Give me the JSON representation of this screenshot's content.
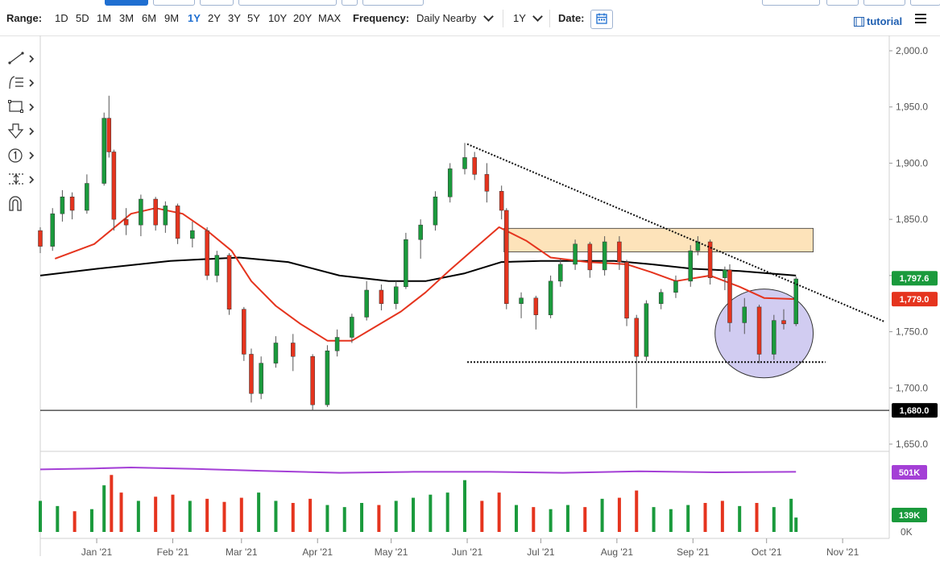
{
  "toolbar": {
    "range_label": "Range:",
    "ranges": [
      "1D",
      "5D",
      "1M",
      "3M",
      "6M",
      "9M",
      "1Y",
      "2Y",
      "3Y",
      "5Y",
      "10Y",
      "20Y",
      "MAX"
    ],
    "active_range": "1Y",
    "frequency_label": "Frequency:",
    "frequency_value": "Daily Nearby",
    "period_value": "1Y",
    "date_label": "Date:",
    "tutorial_label": "tutorial"
  },
  "chart_data": {
    "type": "candlestick",
    "x_ticks": [
      "Jan '21",
      "Feb '21",
      "Mar '21",
      "Apr '21",
      "May '21",
      "Jun '21",
      "Jul '21",
      "Aug '21",
      "Sep '21",
      "Oct '21",
      "Nov '21"
    ],
    "y_ticks": [
      "2,000.0",
      "1,950.0",
      "1,900.0",
      "1,850.0",
      "1,800.0",
      "1,750.0",
      "1,700.0",
      "1,650.0"
    ],
    "ylim": [
      1650,
      2000
    ],
    "x_range": [
      "2020-12-09",
      "2021-11-20"
    ],
    "price_labels": [
      {
        "text": "1,797.6",
        "value": 1797.6,
        "color": "#1a9a3c"
      },
      {
        "text": "1,779.0",
        "value": 1779.0,
        "color": "#e5341e"
      },
      {
        "text": "1,680.0",
        "value": 1680.0,
        "color": "#000000"
      }
    ],
    "horizontal_line": 1680.0,
    "resistance_zone": {
      "from_date": "2021-06-16",
      "to_date": "2021-10-20",
      "low": 1821,
      "high": 1842,
      "color": "#fde3ba"
    },
    "support_line": {
      "from_date": "2021-06-01",
      "to_date": "2021-10-25",
      "value": 1723
    },
    "trendline": {
      "from_date": "2021-06-01",
      "from_value": 1917,
      "to_date": "2021-11-18",
      "to_value": 1759
    },
    "highlight_ellipse": {
      "from_date": "2021-09-10",
      "to_date": "2021-10-20",
      "low": 1709,
      "high": 1788,
      "color": "#c9c3ee"
    },
    "ma_short_color": "#e5341e",
    "ma_long_color": "#000000",
    "ma_short": [
      [
        "2020-12-15",
        1815
      ],
      [
        "2020-12-31",
        1828
      ],
      [
        "2021-01-15",
        1855
      ],
      [
        "2021-01-25",
        1860
      ],
      [
        "2021-02-05",
        1855
      ],
      [
        "2021-02-15",
        1840
      ],
      [
        "2021-02-25",
        1822
      ],
      [
        "2021-03-05",
        1795
      ],
      [
        "2021-03-15",
        1773
      ],
      [
        "2021-03-25",
        1757
      ],
      [
        "2021-04-05",
        1742
      ],
      [
        "2021-04-15",
        1742
      ],
      [
        "2021-04-25",
        1755
      ],
      [
        "2021-05-05",
        1768
      ],
      [
        "2021-05-15",
        1785
      ],
      [
        "2021-05-25",
        1805
      ],
      [
        "2021-06-05",
        1826
      ],
      [
        "2021-06-14",
        1843
      ],
      [
        "2021-06-25",
        1831
      ],
      [
        "2021-07-05",
        1816
      ],
      [
        "2021-07-20",
        1812
      ],
      [
        "2021-08-05",
        1810
      ],
      [
        "2021-08-15",
        1803
      ],
      [
        "2021-08-25",
        1795
      ],
      [
        "2021-09-08",
        1800
      ],
      [
        "2021-09-20",
        1790
      ],
      [
        "2021-09-30",
        1780
      ],
      [
        "2021-10-13",
        1779
      ]
    ],
    "ma_long": [
      [
        "2020-12-09",
        1800
      ],
      [
        "2021-01-01",
        1806
      ],
      [
        "2021-01-31",
        1813
      ],
      [
        "2021-02-28",
        1816
      ],
      [
        "2021-03-20",
        1812
      ],
      [
        "2021-04-10",
        1800
      ],
      [
        "2021-04-30",
        1795
      ],
      [
        "2021-05-15",
        1795
      ],
      [
        "2021-05-31",
        1802
      ],
      [
        "2021-06-15",
        1812
      ],
      [
        "2021-07-01",
        1813
      ],
      [
        "2021-07-31",
        1813
      ],
      [
        "2021-08-15",
        1810
      ],
      [
        "2021-09-01",
        1806
      ],
      [
        "2021-09-20",
        1804
      ],
      [
        "2021-10-13",
        1800
      ]
    ],
    "candles": [
      [
        "2020-12-09",
        1840,
        1843,
        1820,
        1826
      ],
      [
        "2020-12-14",
        1826,
        1860,
        1822,
        1855
      ],
      [
        "2020-12-18",
        1855,
        1876,
        1848,
        1870
      ],
      [
        "2020-12-22",
        1870,
        1874,
        1850,
        1858
      ],
      [
        "2020-12-28",
        1858,
        1890,
        1855,
        1882
      ],
      [
        "2021-01-04",
        1882,
        1945,
        1880,
        1940
      ],
      [
        "2021-01-06",
        1940,
        1960,
        1905,
        1910
      ],
      [
        "2021-01-08",
        1910,
        1912,
        1840,
        1850
      ],
      [
        "2021-01-13",
        1850,
        1860,
        1836,
        1845
      ],
      [
        "2021-01-19",
        1845,
        1872,
        1835,
        1868
      ],
      [
        "2021-01-25",
        1868,
        1870,
        1840,
        1845
      ],
      [
        "2021-01-29",
        1845,
        1866,
        1838,
        1862
      ],
      [
        "2021-02-03",
        1862,
        1864,
        1828,
        1833
      ],
      [
        "2021-02-09",
        1833,
        1848,
        1825,
        1840
      ],
      [
        "2021-02-15",
        1840,
        1843,
        1796,
        1800
      ],
      [
        "2021-02-19",
        1800,
        1822,
        1794,
        1818
      ],
      [
        "2021-02-24",
        1818,
        1820,
        1765,
        1770
      ],
      [
        "2021-03-02",
        1770,
        1772,
        1724,
        1730
      ],
      [
        "2021-03-05",
        1730,
        1735,
        1687,
        1695
      ],
      [
        "2021-03-09",
        1695,
        1728,
        1690,
        1722
      ],
      [
        "2021-03-15",
        1722,
        1746,
        1718,
        1740
      ],
      [
        "2021-03-22",
        1740,
        1748,
        1715,
        1728
      ],
      [
        "2021-03-30",
        1728,
        1730,
        1680,
        1685
      ],
      [
        "2021-04-05",
        1685,
        1738,
        1683,
        1733
      ],
      [
        "2021-04-09",
        1733,
        1752,
        1728,
        1745
      ],
      [
        "2021-04-15",
        1745,
        1766,
        1740,
        1763
      ],
      [
        "2021-04-21",
        1763,
        1795,
        1760,
        1787
      ],
      [
        "2021-04-27",
        1787,
        1792,
        1769,
        1775
      ],
      [
        "2021-05-03",
        1775,
        1795,
        1770,
        1790
      ],
      [
        "2021-05-07",
        1790,
        1838,
        1788,
        1832
      ],
      [
        "2021-05-13",
        1832,
        1850,
        1815,
        1845
      ],
      [
        "2021-05-19",
        1845,
        1875,
        1840,
        1870
      ],
      [
        "2021-05-25",
        1870,
        1900,
        1865,
        1895
      ],
      [
        "2021-05-31",
        1895,
        1918,
        1890,
        1905
      ],
      [
        "2021-06-04",
        1905,
        1910,
        1885,
        1890
      ],
      [
        "2021-06-09",
        1890,
        1900,
        1865,
        1875
      ],
      [
        "2021-06-15",
        1875,
        1880,
        1850,
        1858
      ],
      [
        "2021-06-17",
        1858,
        1860,
        1770,
        1775
      ],
      [
        "2021-06-23",
        1775,
        1785,
        1762,
        1780
      ],
      [
        "2021-06-29",
        1780,
        1782,
        1752,
        1765
      ],
      [
        "2021-07-05",
        1765,
        1800,
        1762,
        1795
      ],
      [
        "2021-07-09",
        1795,
        1815,
        1790,
        1810
      ],
      [
        "2021-07-15",
        1810,
        1832,
        1805,
        1828
      ],
      [
        "2021-07-21",
        1828,
        1830,
        1798,
        1805
      ],
      [
        "2021-07-27",
        1805,
        1835,
        1800,
        1830
      ],
      [
        "2021-08-02",
        1830,
        1835,
        1805,
        1812
      ],
      [
        "2021-08-05",
        1812,
        1814,
        1755,
        1762
      ],
      [
        "2021-08-09",
        1762,
        1765,
        1682,
        1728
      ],
      [
        "2021-08-13",
        1728,
        1778,
        1724,
        1775
      ],
      [
        "2021-08-19",
        1775,
        1788,
        1770,
        1785
      ],
      [
        "2021-08-25",
        1785,
        1800,
        1780,
        1795
      ],
      [
        "2021-08-31",
        1795,
        1827,
        1790,
        1822
      ],
      [
        "2021-09-03",
        1822,
        1835,
        1818,
        1830
      ],
      [
        "2021-09-08",
        1830,
        1832,
        1792,
        1798
      ],
      [
        "2021-09-14",
        1798,
        1808,
        1787,
        1805
      ],
      [
        "2021-09-16",
        1805,
        1810,
        1750,
        1758
      ],
      [
        "2021-09-22",
        1758,
        1780,
        1748,
        1772
      ],
      [
        "2021-09-28",
        1772,
        1774,
        1722,
        1730
      ],
      [
        "2021-10-04",
        1730,
        1765,
        1725,
        1760
      ],
      [
        "2021-10-08",
        1760,
        1770,
        1752,
        1757
      ],
      [
        "2021-10-13",
        1757,
        1799,
        1755,
        1797
      ]
    ],
    "oscillator_label": "501K",
    "volume_label": "139K",
    "volume_zero_label": "0K",
    "volume_max": 700000,
    "volume": [
      [
        "2020-12-09",
        300000,
        "#1a9a3c"
      ],
      [
        "2020-12-16",
        250000,
        "#1a9a3c"
      ],
      [
        "2020-12-23",
        200000,
        "#e5341e"
      ],
      [
        "2020-12-30",
        220000,
        "#1a9a3c"
      ],
      [
        "2021-01-04",
        450000,
        "#1a9a3c"
      ],
      [
        "2021-01-07",
        550000,
        "#e5341e"
      ],
      [
        "2021-01-11",
        380000,
        "#e5341e"
      ],
      [
        "2021-01-18",
        300000,
        "#1a9a3c"
      ],
      [
        "2021-01-25",
        340000,
        "#e5341e"
      ],
      [
        "2021-02-01",
        360000,
        "#e5341e"
      ],
      [
        "2021-02-08",
        300000,
        "#1a9a3c"
      ],
      [
        "2021-02-15",
        320000,
        "#e5341e"
      ],
      [
        "2021-02-22",
        290000,
        "#e5341e"
      ],
      [
        "2021-03-01",
        330000,
        "#e5341e"
      ],
      [
        "2021-03-08",
        380000,
        "#1a9a3c"
      ],
      [
        "2021-03-15",
        300000,
        "#1a9a3c"
      ],
      [
        "2021-03-22",
        280000,
        "#e5341e"
      ],
      [
        "2021-03-29",
        320000,
        "#e5341e"
      ],
      [
        "2021-04-05",
        260000,
        "#1a9a3c"
      ],
      [
        "2021-04-12",
        240000,
        "#1a9a3c"
      ],
      [
        "2021-04-19",
        280000,
        "#1a9a3c"
      ],
      [
        "2021-04-26",
        260000,
        "#e5341e"
      ],
      [
        "2021-05-03",
        300000,
        "#1a9a3c"
      ],
      [
        "2021-05-10",
        330000,
        "#1a9a3c"
      ],
      [
        "2021-05-17",
        360000,
        "#1a9a3c"
      ],
      [
        "2021-05-24",
        380000,
        "#1a9a3c"
      ],
      [
        "2021-05-31",
        500000,
        "#1a9a3c"
      ],
      [
        "2021-06-07",
        300000,
        "#e5341e"
      ],
      [
        "2021-06-14",
        380000,
        "#e5341e"
      ],
      [
        "2021-06-21",
        260000,
        "#1a9a3c"
      ],
      [
        "2021-06-28",
        240000,
        "#e5341e"
      ],
      [
        "2021-07-05",
        220000,
        "#1a9a3c"
      ],
      [
        "2021-07-12",
        260000,
        "#1a9a3c"
      ],
      [
        "2021-07-19",
        240000,
        "#e5341e"
      ],
      [
        "2021-07-26",
        320000,
        "#1a9a3c"
      ],
      [
        "2021-08-02",
        330000,
        "#e5341e"
      ],
      [
        "2021-08-09",
        400000,
        "#e5341e"
      ],
      [
        "2021-08-16",
        240000,
        "#1a9a3c"
      ],
      [
        "2021-08-23",
        220000,
        "#1a9a3c"
      ],
      [
        "2021-08-30",
        260000,
        "#1a9a3c"
      ],
      [
        "2021-09-06",
        280000,
        "#e5341e"
      ],
      [
        "2021-09-13",
        300000,
        "#e5341e"
      ],
      [
        "2021-09-20",
        250000,
        "#1a9a3c"
      ],
      [
        "2021-09-27",
        280000,
        "#e5341e"
      ],
      [
        "2021-10-04",
        240000,
        "#1a9a3c"
      ],
      [
        "2021-10-11",
        320000,
        "#1a9a3c"
      ],
      [
        "2021-10-13",
        139000,
        "#1a9a3c"
      ]
    ],
    "oscillator_color": "#a43fd6",
    "oscillator": [
      [
        "2020-12-09",
        0.78
      ],
      [
        "2020-12-31",
        0.8
      ],
      [
        "2021-01-15",
        0.82
      ],
      [
        "2021-02-10",
        0.79
      ],
      [
        "2021-03-10",
        0.75
      ],
      [
        "2021-04-10",
        0.71
      ],
      [
        "2021-05-10",
        0.73
      ],
      [
        "2021-06-10",
        0.73
      ],
      [
        "2021-07-10",
        0.71
      ],
      [
        "2021-08-10",
        0.74
      ],
      [
        "2021-09-10",
        0.72
      ],
      [
        "2021-10-13",
        0.73
      ]
    ]
  }
}
